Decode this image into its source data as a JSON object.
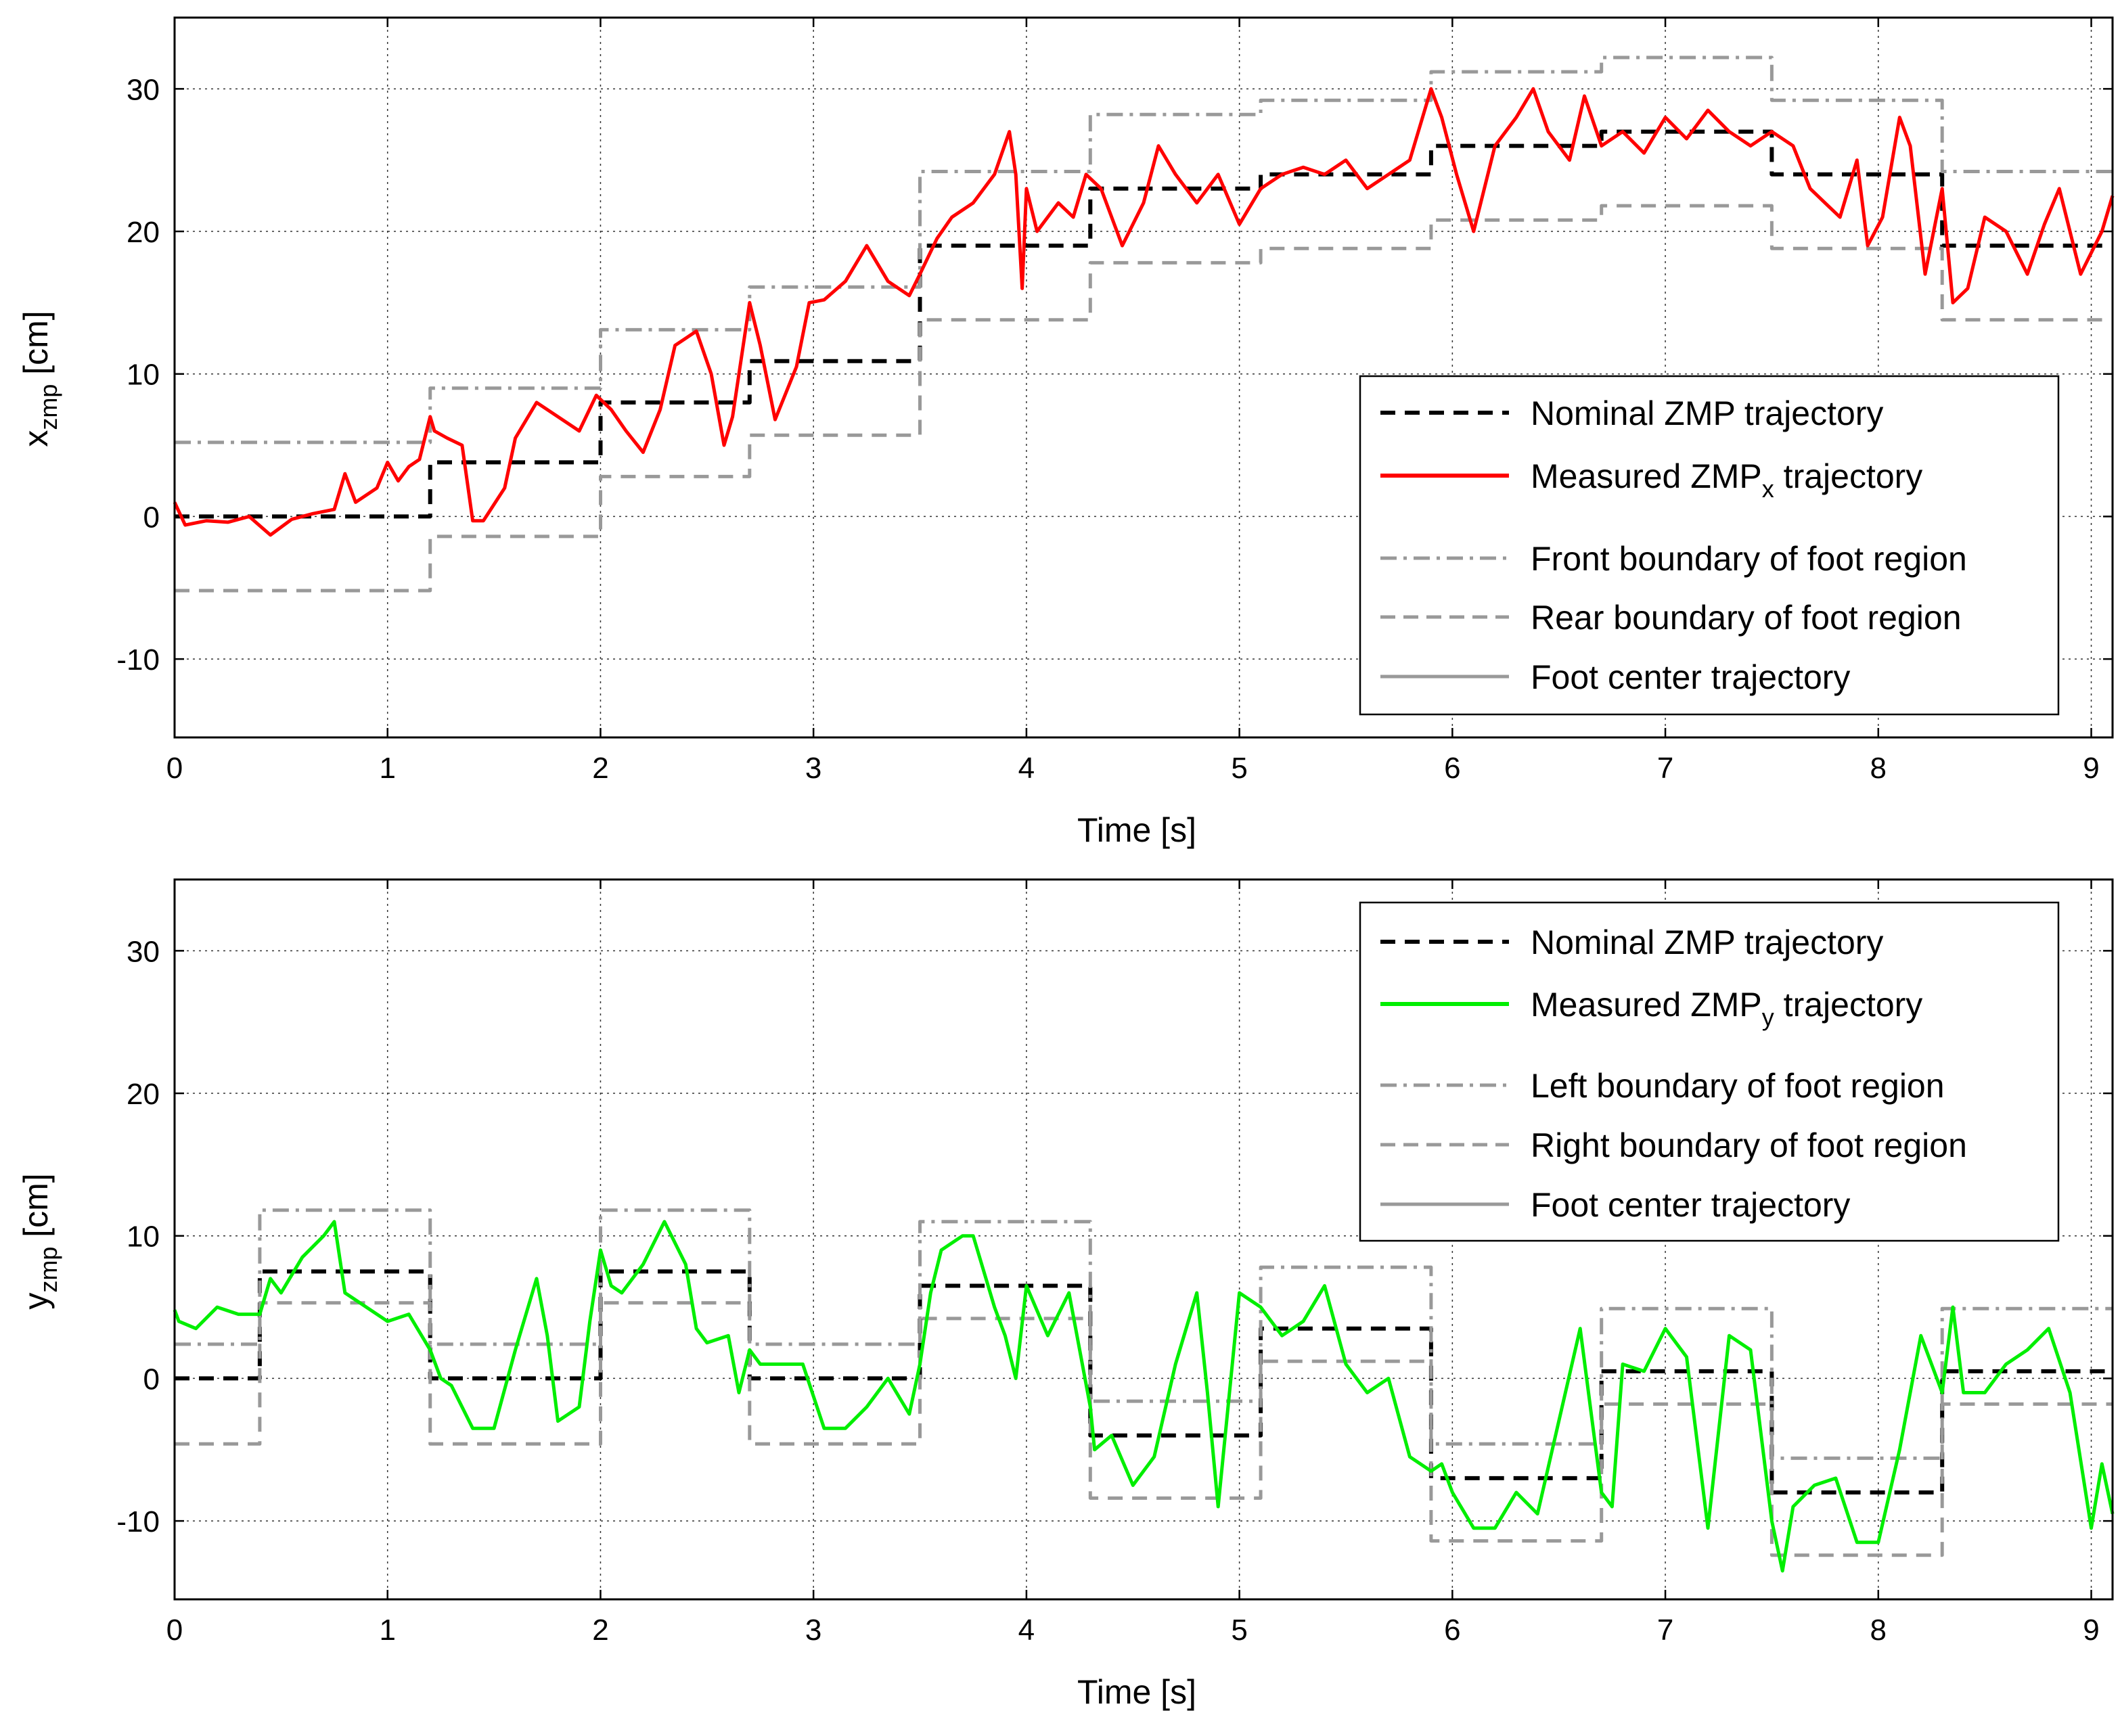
{
  "chart_data": [
    {
      "type": "line",
      "title": "",
      "xlabel": "Time [s]",
      "ylabel_main": "x",
      "ylabel_sub": "zmp",
      "ylabel_unit": " [cm]",
      "xlim": [
        0,
        9.1
      ],
      "ylim": [
        -15.5,
        35
      ],
      "xticks": [
        0,
        1,
        2,
        3,
        4,
        5,
        6,
        7,
        8,
        9
      ],
      "yticks": [
        -10,
        0,
        10,
        20,
        30
      ],
      "grid": true,
      "legend_position": "lower-right",
      "legend": [
        {
          "text": "Nominal ZMP trajectory",
          "sub": "",
          "after": ""
        },
        {
          "text": "Measured ZMP",
          "sub": "x",
          "after": " trajectory"
        },
        {
          "text": "Front boundary of foot region",
          "sub": "",
          "after": ""
        },
        {
          "text": "Rear boundary of foot region",
          "sub": "",
          "after": ""
        },
        {
          "text": "Foot center trajectory",
          "sub": "",
          "after": ""
        }
      ],
      "series": [
        {
          "name": "Nominal ZMP trajectory",
          "style": "dashed",
          "color": "#000000",
          "steps": [
            [
              0,
              0
            ],
            [
              1.2,
              3.8
            ],
            [
              2.0,
              8.0
            ],
            [
              2.7,
              10.9
            ],
            [
              3.5,
              19.0
            ],
            [
              4.3,
              23.0
            ],
            [
              5.1,
              24.0
            ],
            [
              5.9,
              26.0
            ],
            [
              6.7,
              27.0
            ],
            [
              7.5,
              24.0
            ],
            [
              8.3,
              19.0
            ],
            [
              9.1,
              19.0
            ]
          ]
        },
        {
          "name": "Front boundary of foot region",
          "style": "dashdot",
          "color": "#999999",
          "steps": [
            [
              0,
              5.2
            ],
            [
              1.2,
              9.0
            ],
            [
              2.0,
              13.1
            ],
            [
              2.7,
              16.1
            ],
            [
              3.5,
              24.2
            ],
            [
              4.3,
              28.2
            ],
            [
              5.1,
              29.2
            ],
            [
              5.9,
              31.2
            ],
            [
              6.7,
              32.2
            ],
            [
              7.5,
              29.2
            ],
            [
              8.3,
              24.2
            ],
            [
              9.1,
              24.2
            ]
          ]
        },
        {
          "name": "Rear boundary of foot region",
          "style": "dashed",
          "color": "#999999",
          "steps": [
            [
              0,
              -5.2
            ],
            [
              1.2,
              -1.4
            ],
            [
              2.0,
              2.8
            ],
            [
              2.7,
              5.7
            ],
            [
              3.5,
              13.8
            ],
            [
              4.3,
              17.8
            ],
            [
              5.1,
              18.8
            ],
            [
              5.9,
              20.8
            ],
            [
              6.7,
              21.8
            ],
            [
              7.5,
              18.8
            ],
            [
              8.3,
              13.8
            ],
            [
              9.1,
              13.8
            ]
          ]
        },
        {
          "name": "Measured ZMPx trajectory",
          "style": "solid",
          "color": "#ff0000",
          "x": [
            0,
            0.05,
            0.15,
            0.25,
            0.35,
            0.45,
            0.55,
            0.65,
            0.75,
            0.8,
            0.85,
            0.95,
            1.0,
            1.05,
            1.1,
            1.15,
            1.2,
            1.22,
            1.28,
            1.35,
            1.4,
            1.45,
            1.55,
            1.6,
            1.7,
            1.8,
            1.9,
            1.98,
            2.05,
            2.12,
            2.2,
            2.28,
            2.35,
            2.45,
            2.52,
            2.58,
            2.62,
            2.7,
            2.75,
            2.82,
            2.92,
            2.98,
            3.05,
            3.15,
            3.25,
            3.35,
            3.45,
            3.5,
            3.58,
            3.65,
            3.75,
            3.85,
            3.92,
            3.95,
            3.98,
            4.0,
            4.05,
            4.15,
            4.22,
            4.28,
            4.35,
            4.45,
            4.55,
            4.62,
            4.7,
            4.8,
            4.9,
            5.0,
            5.1,
            5.2,
            5.3,
            5.4,
            5.5,
            5.6,
            5.7,
            5.8,
            5.9,
            5.95,
            6.02,
            6.1,
            6.2,
            6.3,
            6.38,
            6.45,
            6.55,
            6.62,
            6.7,
            6.8,
            6.9,
            7.0,
            7.1,
            7.2,
            7.3,
            7.4,
            7.5,
            7.6,
            7.68,
            7.75,
            7.82,
            7.9,
            7.95,
            8.02,
            8.1,
            8.15,
            8.22,
            8.3,
            8.35,
            8.42,
            8.5,
            8.6,
            8.7,
            8.78,
            8.85,
            8.95,
            9.05,
            9.1
          ],
          "y": [
            1.0,
            -0.6,
            -0.3,
            -0.4,
            0.0,
            -1.3,
            -0.2,
            0.2,
            0.5,
            3.0,
            1.0,
            2.0,
            3.8,
            2.5,
            3.5,
            4.0,
            7.0,
            6.0,
            5.5,
            5.0,
            -0.3,
            -0.3,
            2.0,
            5.5,
            8.0,
            7.0,
            6.0,
            8.5,
            7.5,
            6.0,
            4.5,
            7.5,
            12.0,
            13.0,
            10.0,
            5.0,
            7.0,
            15.0,
            12.0,
            6.8,
            10.5,
            15.0,
            15.2,
            16.5,
            19.0,
            16.5,
            15.5,
            17.0,
            19.5,
            21.0,
            22.0,
            24.0,
            27.0,
            24.0,
            16.0,
            23.0,
            20.0,
            22.0,
            21.0,
            24.0,
            23.0,
            19.0,
            22.0,
            26.0,
            24.0,
            22.0,
            24.0,
            20.5,
            23.0,
            24.0,
            24.5,
            24.0,
            25.0,
            23.0,
            24.0,
            25.0,
            30.0,
            28.0,
            24.0,
            20.0,
            26.0,
            28.0,
            30.0,
            27.0,
            25.0,
            29.5,
            26.0,
            27.0,
            25.5,
            28.0,
            26.5,
            28.5,
            27.0,
            26.0,
            27.0,
            26.0,
            23.0,
            22.0,
            21.0,
            25.0,
            19.0,
            21.0,
            28.0,
            26.0,
            17.0,
            23.0,
            15.0,
            16.0,
            21.0,
            20.0,
            17.0,
            20.5,
            23.0,
            17.0,
            20.0,
            22.5
          ]
        }
      ]
    },
    {
      "type": "line",
      "title": "",
      "xlabel": "Time [s]",
      "ylabel_main": "y",
      "ylabel_sub": "zmp",
      "ylabel_unit": " [cm]",
      "xlim": [
        0,
        9.1
      ],
      "ylim": [
        -15.5,
        35
      ],
      "xticks": [
        0,
        1,
        2,
        3,
        4,
        5,
        6,
        7,
        8,
        9
      ],
      "yticks": [
        -10,
        0,
        10,
        20,
        30
      ],
      "grid": true,
      "legend_position": "top-right",
      "legend": [
        {
          "text": "Nominal ZMP trajectory",
          "sub": "",
          "after": ""
        },
        {
          "text": "Measured ZMP",
          "sub": "y",
          "after": " trajectory"
        },
        {
          "text": "Left boundary of foot region",
          "sub": "",
          "after": ""
        },
        {
          "text": "Right boundary of foot region",
          "sub": "",
          "after": ""
        },
        {
          "text": "Foot center trajectory",
          "sub": "",
          "after": ""
        }
      ],
      "series": [
        {
          "name": "Nominal ZMP trajectory",
          "style": "dashed",
          "color": "#000000",
          "steps": [
            [
              0,
              0
            ],
            [
              0.4,
              7.5
            ],
            [
              1.2,
              0
            ],
            [
              2.0,
              7.5
            ],
            [
              2.7,
              0
            ],
            [
              3.5,
              6.5
            ],
            [
              4.3,
              -4.0
            ],
            [
              5.1,
              3.5
            ],
            [
              5.9,
              -7.0
            ],
            [
              6.7,
              0.5
            ],
            [
              7.5,
              -8.0
            ],
            [
              8.3,
              0.5
            ],
            [
              9.1,
              0.5
            ]
          ]
        },
        {
          "name": "Left boundary of foot region",
          "style": "dashdot",
          "color": "#999999",
          "steps": [
            [
              0,
              2.4
            ],
            [
              0.4,
              11.8
            ],
            [
              1.2,
              2.4
            ],
            [
              2.0,
              11.8
            ],
            [
              2.7,
              2.4
            ],
            [
              3.5,
              11.0
            ],
            [
              4.3,
              -1.6
            ],
            [
              5.1,
              7.8
            ],
            [
              5.9,
              -4.6
            ],
            [
              6.7,
              4.9
            ],
            [
              7.5,
              -5.6
            ],
            [
              8.3,
              4.9
            ],
            [
              9.1,
              4.9
            ]
          ]
        },
        {
          "name": "Right boundary of foot region",
          "style": "dashed",
          "color": "#999999",
          "steps": [
            [
              0,
              -4.6
            ],
            [
              0.4,
              5.3
            ],
            [
              1.2,
              -4.6
            ],
            [
              2.0,
              5.3
            ],
            [
              2.7,
              -4.6
            ],
            [
              3.5,
              4.2
            ],
            [
              4.3,
              -8.4
            ],
            [
              5.1,
              1.2
            ],
            [
              5.9,
              -11.4
            ],
            [
              6.7,
              -1.8
            ],
            [
              7.5,
              -12.4
            ],
            [
              8.3,
              -1.8
            ],
            [
              9.1,
              -1.8
            ]
          ]
        },
        {
          "name": "Measured ZMPy trajectory",
          "style": "solid",
          "color": "#00ee00",
          "x": [
            0,
            0.02,
            0.1,
            0.2,
            0.3,
            0.4,
            0.45,
            0.5,
            0.6,
            0.7,
            0.75,
            0.8,
            0.9,
            1.0,
            1.1,
            1.2,
            1.25,
            1.3,
            1.4,
            1.5,
            1.6,
            1.7,
            1.75,
            1.8,
            1.9,
            1.95,
            2.0,
            2.05,
            2.1,
            2.2,
            2.3,
            2.4,
            2.45,
            2.5,
            2.6,
            2.65,
            2.7,
            2.75,
            2.85,
            2.95,
            3.05,
            3.15,
            3.25,
            3.35,
            3.45,
            3.5,
            3.55,
            3.6,
            3.7,
            3.75,
            3.85,
            3.9,
            3.95,
            4.0,
            4.1,
            4.2,
            4.3,
            4.32,
            4.4,
            4.5,
            4.6,
            4.7,
            4.8,
            4.85,
            4.9,
            5.0,
            5.1,
            5.2,
            5.3,
            5.4,
            5.5,
            5.6,
            5.7,
            5.8,
            5.9,
            5.95,
            6.0,
            6.1,
            6.2,
            6.3,
            6.4,
            6.5,
            6.6,
            6.7,
            6.75,
            6.8,
            6.9,
            7.0,
            7.1,
            7.2,
            7.3,
            7.4,
            7.5,
            7.55,
            7.6,
            7.7,
            7.8,
            7.9,
            8.0,
            8.1,
            8.2,
            8.3,
            8.35,
            8.4,
            8.5,
            8.6,
            8.7,
            8.8,
            8.9,
            9.0,
            9.05,
            9.1
          ],
          "y": [
            4.8,
            4.0,
            3.5,
            5.0,
            4.5,
            4.5,
            7.0,
            6.0,
            8.5,
            10.0,
            11.0,
            6.0,
            5.0,
            4.0,
            4.5,
            2.0,
            0.0,
            -0.5,
            -3.5,
            -3.5,
            2.0,
            7.0,
            3.0,
            -3.0,
            -2.0,
            4.0,
            9.0,
            6.5,
            6.0,
            8.0,
            11.0,
            8.0,
            3.5,
            2.5,
            3.0,
            -1.0,
            2.0,
            1.0,
            1.0,
            1.0,
            -3.5,
            -3.5,
            -2.0,
            0.0,
            -2.5,
            1.0,
            6.0,
            9.0,
            10.0,
            10.0,
            5.0,
            3.0,
            0.0,
            6.5,
            3.0,
            6.0,
            -2.0,
            -5.0,
            -4.0,
            -7.5,
            -5.5,
            1.0,
            6.0,
            -1.0,
            -9.0,
            6.0,
            5.0,
            3.0,
            4.0,
            6.5,
            1.0,
            -1.0,
            0.0,
            -5.5,
            -6.5,
            -6.0,
            -8.0,
            -10.5,
            -10.5,
            -8.0,
            -9.5,
            -3.0,
            3.5,
            -8.0,
            -9.0,
            1.0,
            0.5,
            3.5,
            1.5,
            -10.5,
            3.0,
            2.0,
            -10.0,
            -13.5,
            -9.0,
            -7.5,
            -7.0,
            -11.5,
            -11.5,
            -5.0,
            3.0,
            -1.0,
            5.0,
            -1.0,
            -1.0,
            1.0,
            2.0,
            3.5,
            -1.0,
            -10.5,
            -6.0,
            -9.5
          ]
        }
      ]
    }
  ]
}
